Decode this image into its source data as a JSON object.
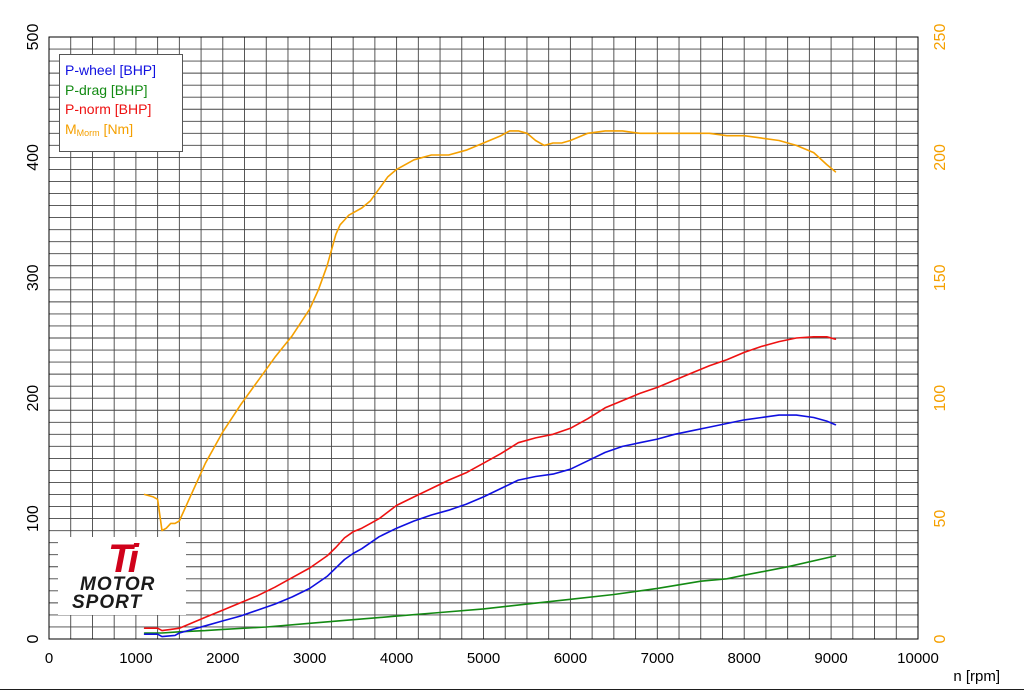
{
  "chart_data": {
    "type": "line",
    "title": "",
    "xlabel": "n [rpm]",
    "xlim": [
      0,
      10000
    ],
    "x_ticks": [
      "0",
      "1000",
      "2000",
      "3000",
      "4000",
      "5000",
      "6000",
      "7000",
      "8000",
      "9000",
      "10000"
    ],
    "y_left": {
      "ylim": [
        0,
        500
      ],
      "ticks": [
        "0",
        "100",
        "200",
        "300",
        "400",
        "500"
      ]
    },
    "y_right": {
      "ylim": [
        0,
        250
      ],
      "ticks": [
        "0",
        "50",
        "100",
        "150",
        "200",
        "250"
      ],
      "color": "#f5a000"
    },
    "grid": true,
    "legend_placement": "top-left",
    "series": [
      {
        "name": "P-wheel [BHP]",
        "axis": "left",
        "color": "#1010e0",
        "x": [
          1100,
          1250,
          1300,
          1450,
          1500,
          1600,
          1700,
          1800,
          2000,
          2200,
          2400,
          2600,
          2800,
          3000,
          3200,
          3400,
          3500,
          3600,
          3700,
          3800,
          4000,
          4200,
          4400,
          4600,
          4800,
          5000,
          5200,
          5400,
          5600,
          5800,
          6000,
          6200,
          6400,
          6600,
          6800,
          7000,
          7200,
          7400,
          7600,
          7800,
          8000,
          8200,
          8400,
          8600,
          8800,
          8950,
          9050
        ],
        "y": [
          4,
          4,
          2,
          3,
          5,
          7,
          9,
          11,
          15,
          19,
          24,
          29,
          35,
          42,
          52,
          66,
          71,
          75,
          80,
          85,
          92,
          98,
          103,
          107,
          112,
          118,
          125,
          132,
          135,
          137,
          141,
          148,
          155,
          160,
          163,
          166,
          170,
          173,
          176,
          179,
          182,
          184,
          186,
          186,
          184,
          181,
          178
        ]
      },
      {
        "name": "P-drag [BHP]",
        "axis": "left",
        "color": "#138a13",
        "x": [
          1100,
          1300,
          1500,
          1800,
          2000,
          2500,
          3000,
          3500,
          4000,
          4500,
          5000,
          5500,
          6000,
          6500,
          7000,
          7500,
          7800,
          8000,
          8500,
          9050
        ],
        "y": [
          5,
          5,
          6,
          7,
          8,
          10,
          13,
          16,
          19,
          22,
          25,
          29,
          33,
          37,
          42,
          48,
          50,
          53,
          60,
          69
        ]
      },
      {
        "name": "P-norm [BHP]",
        "axis": "left",
        "color": "#ee1111",
        "x": [
          1100,
          1250,
          1300,
          1400,
          1500,
          1600,
          1800,
          2000,
          2200,
          2400,
          2600,
          2800,
          3000,
          3200,
          3300,
          3400,
          3500,
          3600,
          3700,
          3800,
          4000,
          4200,
          4400,
          4600,
          4800,
          5000,
          5200,
          5400,
          5600,
          5800,
          6000,
          6200,
          6400,
          6600,
          6800,
          7000,
          7200,
          7400,
          7600,
          7800,
          8000,
          8200,
          8400,
          8600,
          8800,
          8950,
          9050
        ],
        "y": [
          9,
          9,
          7,
          8,
          9,
          12,
          18,
          24,
          30,
          36,
          43,
          51,
          59,
          69,
          76,
          84,
          89,
          92,
          96,
          100,
          111,
          118,
          125,
          132,
          138,
          146,
          154,
          163,
          167,
          170,
          175,
          183,
          192,
          198,
          204,
          209,
          215,
          221,
          227,
          232,
          238,
          243,
          247,
          250,
          251,
          251,
          249
        ]
      },
      {
        "name": "M_Morm [Nm]",
        "label_main": "M",
        "label_sub": "Morm",
        "label_unit": " [Nm]",
        "axis": "right",
        "color": "#f5a000",
        "x": [
          1100,
          1200,
          1250,
          1300,
          1350,
          1400,
          1450,
          1500,
          1600,
          1700,
          1800,
          2000,
          2200,
          2400,
          2600,
          2800,
          3000,
          3100,
          3200,
          3300,
          3350,
          3400,
          3450,
          3500,
          3600,
          3700,
          3800,
          3900,
          4000,
          4200,
          4400,
          4600,
          4800,
          5000,
          5200,
          5300,
          5400,
          5500,
          5600,
          5700,
          5800,
          5900,
          6000,
          6200,
          6400,
          6600,
          6800,
          7000,
          7200,
          7400,
          7600,
          7800,
          8000,
          8200,
          8400,
          8600,
          8800,
          8950,
          9050
        ],
        "y": [
          60,
          59,
          58,
          45,
          46,
          48,
          48,
          49,
          57,
          65,
          73,
          86,
          97,
          107,
          117,
          126,
          137,
          145,
          155,
          168,
          172,
          174,
          176,
          177,
          179,
          182,
          187,
          192,
          195,
          199,
          201,
          201,
          203,
          206,
          209,
          211,
          211,
          210,
          207,
          205,
          206,
          206,
          207,
          210,
          211,
          211,
          210,
          210,
          210,
          210,
          210,
          209,
          209,
          208,
          207,
          205,
          202,
          197,
          194
        ]
      }
    ]
  },
  "logo": {
    "ti": "Ti",
    "line1": "MOTOR",
    "line2": "SPORT"
  }
}
